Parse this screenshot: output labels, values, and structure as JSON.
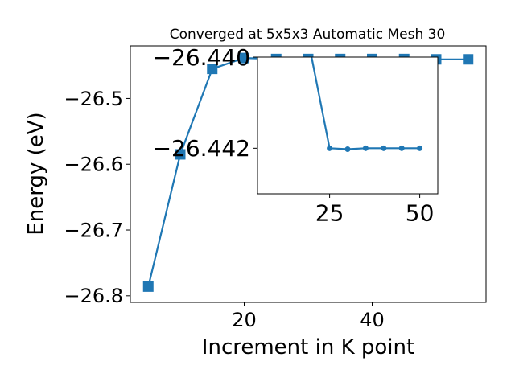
{
  "chart_data": [
    {
      "type": "line",
      "title": "Converged at 5x5x3 Automatic Mesh 30",
      "xlabel": "Increment in K point",
      "ylabel": "Energy (eV)",
      "xlim": [
        2.2,
        57.8
      ],
      "ylim": [
        -26.81,
        -26.42
      ],
      "x_ticks": [
        20,
        40
      ],
      "y_ticks": [
        -26.8,
        -26.7,
        -26.6,
        -26.5
      ],
      "x_tick_labels": [
        "20",
        "40"
      ],
      "y_tick_labels": [
        "−26.8",
        "−26.7",
        "−26.6",
        "−26.5"
      ],
      "grid": false,
      "series": [
        {
          "color": "#1f77b4",
          "marker": "square",
          "x": [
            5,
            10,
            15,
            20,
            25,
            30,
            35,
            40,
            45,
            50,
            55
          ],
          "values": [
            -26.786,
            -26.585,
            -26.455,
            -26.4385,
            -26.44,
            -26.44,
            -26.44,
            -26.44,
            -26.44,
            -26.4405,
            -26.4405
          ]
        }
      ]
    },
    {
      "type": "line",
      "title": "",
      "xlabel": "",
      "ylabel": "",
      "xlim": [
        5,
        55
      ],
      "ylim": [
        -26.443,
        -26.44
      ],
      "x_ticks": [
        25,
        50
      ],
      "y_ticks": [
        -26.442,
        -26.44
      ],
      "x_tick_labels": [
        "25",
        "50"
      ],
      "y_tick_labels": [
        "−26.442",
        "−26.440"
      ],
      "grid": false,
      "series": [
        {
          "color": "#1f77b4",
          "marker": "circle",
          "x": [
            20,
            25,
            30,
            35,
            40,
            45,
            50
          ],
          "values": [
            -26.4385,
            -26.442,
            -26.44202,
            -26.442,
            -26.442,
            -26.442,
            -26.442
          ]
        }
      ]
    }
  ]
}
